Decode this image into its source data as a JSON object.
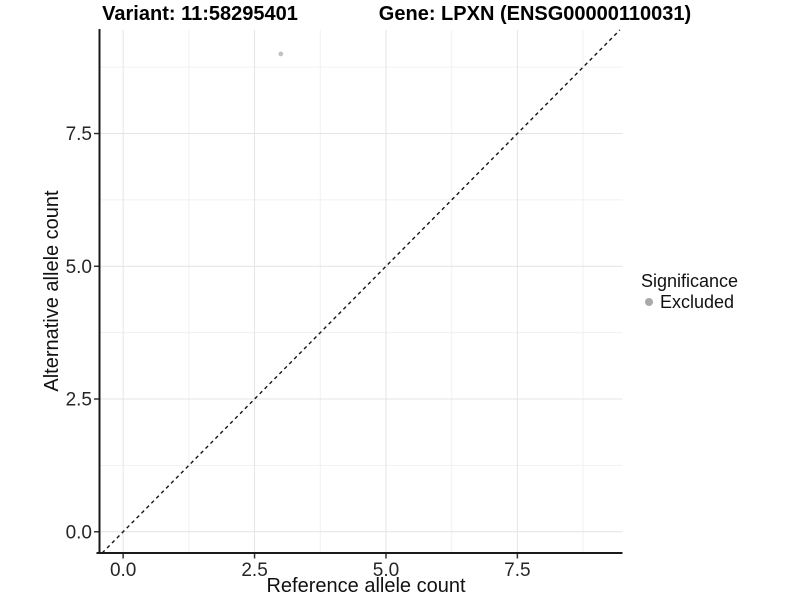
{
  "chart_data": {
    "type": "scatter",
    "titles": {
      "left": "Variant: 11:58295401",
      "right": "Gene: LPXN (ENSG00000110031)"
    },
    "xlabel": "Reference allele count",
    "ylabel": "Alternative allele count",
    "x_ticks": [
      0,
      2.5,
      5,
      7.5
    ],
    "x_tick_labels": [
      "0.0",
      "2.5",
      "5.0",
      "7.5"
    ],
    "y_ticks": [
      0,
      2.5,
      5,
      7.5
    ],
    "y_tick_labels": [
      "0.0",
      "2.5",
      "5.0",
      "7.5"
    ],
    "x_minor_ticks": [
      1.25,
      3.75,
      6.25,
      8.75
    ],
    "y_minor_ticks": [
      1.25,
      3.75,
      6.25,
      8.75
    ],
    "xlim": [
      -0.45,
      9.5
    ],
    "ylim": [
      -0.4,
      9.45
    ],
    "grid": "major+minor",
    "points": [
      {
        "x": 3,
        "y": 9,
        "significance": "Excluded"
      }
    ],
    "reference_line": {
      "kind": "identity",
      "slope": 1,
      "intercept": 0,
      "style": "dashed"
    },
    "legend": {
      "title": "Significance",
      "position": "right",
      "entries": [
        {
          "label": "Excluded",
          "color": "#a9a9a9"
        }
      ]
    },
    "colors": {
      "point": "#c2c2c2",
      "grid_major": "#e4e4e4",
      "grid_minor": "#f1f1f1",
      "axis": "#1a1a1a",
      "tick": "#333333",
      "tick_label": "#262626",
      "reference_line": "#141414",
      "background": "#ffffff"
    }
  }
}
